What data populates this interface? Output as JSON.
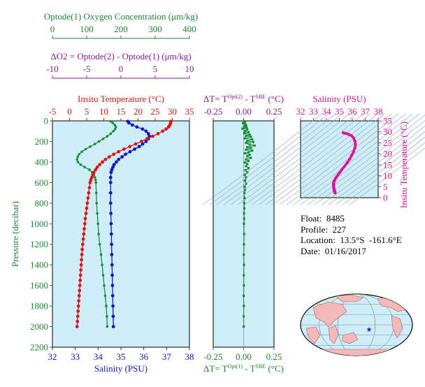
{
  "colors": {
    "oxygen": "#1a8a32",
    "delta_o2": "#8e1a8e",
    "temperature": "#e3140f",
    "salinity": "#1414d2",
    "ts": "#e0109c",
    "panel_bg": "#cdeef8",
    "axis": "#000000"
  },
  "chart_data": [
    {
      "type": "line",
      "title": "",
      "ylabel": "Pressure (decibar)",
      "ylim": [
        0,
        2200
      ],
      "y_inverted": true,
      "yticks": [
        0,
        200,
        400,
        600,
        800,
        1000,
        1200,
        1400,
        1600,
        1800,
        2000,
        2200
      ],
      "axes": {
        "oxygen": {
          "label": "Optode(1) Oxygen Concentration (μm/kg)",
          "range": [
            0,
            400
          ],
          "ticks": [
            0,
            100,
            200,
            300,
            400
          ]
        },
        "delta_o2": {
          "label": "ΔO2 = Optode(2) - Optode(1)   (μm/kg)",
          "range": [
            -10,
            10
          ],
          "ticks": [
            -10,
            -5,
            0,
            5,
            10
          ]
        },
        "temperature": {
          "label": "Insitu Temperature (°C)",
          "range": [
            -5,
            35
          ],
          "ticks": [
            -5,
            0,
            5,
            10,
            15,
            20,
            25,
            30,
            35
          ]
        },
        "salinity": {
          "label": "Salinity (PSU)",
          "range": [
            32,
            38
          ],
          "ticks": [
            32,
            33,
            34,
            35,
            36,
            37,
            38
          ]
        }
      },
      "series": [
        {
          "name": "Insitu Temperature (°C)",
          "axis": "temperature",
          "points": [
            [
              29.6,
              5
            ],
            [
              29.5,
              20
            ],
            [
              29.3,
              40
            ],
            [
              28.9,
              60
            ],
            [
              28.2,
              80
            ],
            [
              27.2,
              100
            ],
            [
              25.8,
              125
            ],
            [
              24.3,
              150
            ],
            [
              22.6,
              175
            ],
            [
              21,
              200
            ],
            [
              19.3,
              225
            ],
            [
              17.6,
              250
            ],
            [
              15.9,
              275
            ],
            [
              14.3,
              300
            ],
            [
              12.9,
              325
            ],
            [
              11.6,
              350
            ],
            [
              10.5,
              375
            ],
            [
              9.6,
              400
            ],
            [
              8.8,
              425
            ],
            [
              8.1,
              450
            ],
            [
              7.6,
              475
            ],
            [
              7.1,
              500
            ],
            [
              6.8,
              525
            ],
            [
              6.5,
              550
            ],
            [
              6.2,
              575
            ],
            [
              6,
              600
            ],
            [
              5.8,
              650
            ],
            [
              5.6,
              700
            ],
            [
              5.4,
              750
            ],
            [
              5.2,
              800
            ],
            [
              5,
              850
            ],
            [
              4.8,
              900
            ],
            [
              4.6,
              950
            ],
            [
              4.45,
              1000
            ],
            [
              4.3,
              1050
            ],
            [
              4.15,
              1100
            ],
            [
              4,
              1150
            ],
            [
              3.85,
              1200
            ],
            [
              3.7,
              1250
            ],
            [
              3.6,
              1300
            ],
            [
              3.5,
              1350
            ],
            [
              3.4,
              1400
            ],
            [
              3.3,
              1450
            ],
            [
              3.2,
              1500
            ],
            [
              3.1,
              1550
            ],
            [
              3,
              1600
            ],
            [
              2.9,
              1650
            ],
            [
              2.8,
              1700
            ],
            [
              2.7,
              1750
            ],
            [
              2.6,
              1800
            ],
            [
              2.5,
              1850
            ],
            [
              2.4,
              1900
            ],
            [
              2.3,
              1950
            ],
            [
              2.2,
              2000
            ]
          ]
        },
        {
          "name": "Salinity (PSU)",
          "axis": "salinity",
          "points": [
            [
              35.3,
              5
            ],
            [
              35.35,
              20
            ],
            [
              35.5,
              40
            ],
            [
              35.7,
              60
            ],
            [
              35.95,
              80
            ],
            [
              36.1,
              100
            ],
            [
              36.2,
              125
            ],
            [
              36.25,
              150
            ],
            [
              36.2,
              175
            ],
            [
              36.1,
              200
            ],
            [
              35.95,
              225
            ],
            [
              35.8,
              250
            ],
            [
              35.6,
              275
            ],
            [
              35.4,
              300
            ],
            [
              35.2,
              325
            ],
            [
              35.05,
              350
            ],
            [
              34.9,
              375
            ],
            [
              34.8,
              400
            ],
            [
              34.7,
              425
            ],
            [
              34.65,
              450
            ],
            [
              34.6,
              475
            ],
            [
              34.57,
              500
            ],
            [
              34.55,
              550
            ],
            [
              34.55,
              600
            ],
            [
              34.55,
              700
            ],
            [
              34.55,
              800
            ],
            [
              34.56,
              900
            ],
            [
              34.57,
              1000
            ],
            [
              34.58,
              1100
            ],
            [
              34.59,
              1200
            ],
            [
              34.6,
              1300
            ],
            [
              34.61,
              1400
            ],
            [
              34.62,
              1500
            ],
            [
              34.63,
              1600
            ],
            [
              34.64,
              1700
            ],
            [
              34.65,
              1800
            ],
            [
              34.66,
              1900
            ],
            [
              34.67,
              2000
            ]
          ]
        },
        {
          "name": "Optode(1) Oxygen Concentration (μm/kg)",
          "axis": "oxygen",
          "points": [
            [
              170,
              5
            ],
            [
              176,
              20
            ],
            [
              182,
              40
            ],
            [
              185,
              60
            ],
            [
              183,
              80
            ],
            [
              178,
              100
            ],
            [
              170,
              125
            ],
            [
              160,
              150
            ],
            [
              148,
              175
            ],
            [
              136,
              200
            ],
            [
              124,
              225
            ],
            [
              110,
              250
            ],
            [
              97,
              275
            ],
            [
              86,
              300
            ],
            [
              78,
              325
            ],
            [
              74,
              350
            ],
            [
              72,
              375
            ],
            [
              74,
              400
            ],
            [
              82,
              425
            ],
            [
              94,
              450
            ],
            [
              108,
              475
            ],
            [
              116,
              500
            ],
            [
              121,
              525
            ],
            [
              124,
              550
            ],
            [
              126,
              575
            ],
            [
              127,
              600
            ],
            [
              128,
              700
            ],
            [
              129,
              800
            ],
            [
              131,
              900
            ],
            [
              133,
              1000
            ],
            [
              135,
              1100
            ],
            [
              138,
              1200
            ],
            [
              142,
              1300
            ],
            [
              145,
              1400
            ],
            [
              148,
              1500
            ],
            [
              151,
              1600
            ],
            [
              154,
              1700
            ],
            [
              157,
              1800
            ],
            [
              159,
              1900
            ],
            [
              160,
              2000
            ]
          ]
        },
        {
          "name": "ΔT = T(Opt(2)) - T(SBE) (°C)",
          "axis": "dt_top",
          "points": [
            [
              0.002,
              5
            ],
            [
              0.01,
              15
            ],
            [
              -0.005,
              25
            ],
            [
              0.015,
              35
            ],
            [
              0.02,
              45
            ],
            [
              0.005,
              55
            ],
            [
              0.025,
              65
            ],
            [
              -0.01,
              75
            ],
            [
              0.03,
              85
            ],
            [
              0.01,
              100
            ],
            [
              0.04,
              110
            ],
            [
              0.005,
              120
            ],
            [
              0.05,
              135
            ],
            [
              0.02,
              145
            ],
            [
              0.06,
              155
            ],
            [
              0.01,
              170
            ],
            [
              0.07,
              180
            ],
            [
              0.03,
              195
            ],
            [
              0.08,
              205
            ],
            [
              0.02,
              215
            ],
            [
              0.05,
              230
            ],
            [
              0.09,
              240
            ],
            [
              0.03,
              255
            ],
            [
              0.06,
              265
            ],
            [
              0.02,
              280
            ],
            [
              0.07,
              290
            ],
            [
              0.04,
              305
            ],
            [
              0.01,
              315
            ],
            [
              0.05,
              330
            ],
            [
              0.03,
              345
            ],
            [
              0.06,
              360
            ],
            [
              0.02,
              375
            ],
            [
              0.04,
              390
            ],
            [
              0.01,
              405
            ],
            [
              0.03,
              420
            ],
            [
              0.02,
              440
            ],
            [
              0.04,
              460
            ],
            [
              0.015,
              480
            ],
            [
              0.03,
              500
            ],
            [
              0.01,
              525
            ],
            [
              0.02,
              550
            ],
            [
              0.012,
              580
            ],
            [
              0.02,
              610
            ],
            [
              0.008,
              640
            ],
            [
              0.012,
              670
            ],
            [
              0.006,
              700
            ],
            [
              0.008,
              750
            ],
            [
              0.005,
              800
            ],
            [
              0.006,
              850
            ],
            [
              0.004,
              900
            ],
            [
              0.005,
              950
            ],
            [
              0.003,
              1000
            ],
            [
              0.004,
              1100
            ],
            [
              0.003,
              1200
            ],
            [
              0.002,
              1300
            ],
            [
              0.003,
              1400
            ],
            [
              0.002,
              1500
            ],
            [
              0.002,
              1600
            ],
            [
              0.001,
              1700
            ],
            [
              0.002,
              1800
            ],
            [
              0.001,
              1900
            ],
            [
              0.001,
              2000
            ]
          ]
        },
        {
          "name": "Salinity vs Insitu Temperature",
          "axis": "ts",
          "points": [
            [
              35.3,
              29.6
            ],
            [
              35.35,
              29.5
            ],
            [
              35.5,
              29.3
            ],
            [
              35.7,
              28.9
            ],
            [
              35.95,
              28.2
            ],
            [
              36.1,
              27.2
            ],
            [
              36.2,
              25.8
            ],
            [
              36.25,
              24.3
            ],
            [
              36.2,
              22.6
            ],
            [
              36.1,
              21
            ],
            [
              35.95,
              19.3
            ],
            [
              35.8,
              17.6
            ],
            [
              35.6,
              15.9
            ],
            [
              35.4,
              14.3
            ],
            [
              35.2,
              12.9
            ],
            [
              35.05,
              11.6
            ],
            [
              34.9,
              10.5
            ],
            [
              34.8,
              9.6
            ],
            [
              34.7,
              8.8
            ],
            [
              34.65,
              8.1
            ],
            [
              34.6,
              7.6
            ],
            [
              34.57,
              7.1
            ],
            [
              34.55,
              6.5
            ],
            [
              34.55,
              6
            ],
            [
              34.55,
              5.6
            ],
            [
              34.55,
              5.2
            ],
            [
              34.56,
              4.8
            ],
            [
              34.57,
              4.45
            ],
            [
              34.58,
              4.15
            ],
            [
              34.59,
              3.85
            ],
            [
              34.6,
              3.6
            ],
            [
              34.61,
              3.4
            ],
            [
              34.62,
              3.2
            ],
            [
              34.63,
              3
            ],
            [
              34.64,
              2.8
            ],
            [
              34.65,
              2.6
            ],
            [
              34.66,
              2.4
            ],
            [
              34.67,
              2.2
            ]
          ]
        }
      ]
    },
    {
      "type": "scatter",
      "title": "",
      "axes": {
        "dt_top": {
          "label_parts": [
            "ΔT= T",
            "Opt(2)",
            " - T",
            "SBE",
            " (°C)"
          ],
          "range": [
            -0.25,
            0.25
          ],
          "ticks": [
            "-0.25",
            "0.00",
            "0.25"
          ]
        },
        "dt_bottom": {
          "label_parts": [
            "ΔT= T",
            "Opt(1)",
            " - T",
            "SBE",
            " (°C)"
          ],
          "range": [
            -0.25,
            0.25
          ],
          "ticks": [
            "-0.25",
            "0.00",
            "0.25"
          ]
        }
      }
    },
    {
      "type": "line",
      "title": "",
      "axes": {
        "ts_x": {
          "label": "Salinity (PSU)",
          "range": [
            32,
            38
          ],
          "ticks": [
            32,
            33,
            34,
            35,
            36,
            37,
            38
          ]
        },
        "ts_y": {
          "label": "Insitu Temperature (°C)",
          "range": [
            0,
            35
          ],
          "ticks": [
            0,
            5,
            10,
            15,
            20,
            25,
            30,
            35
          ]
        }
      }
    }
  ],
  "info": {
    "float": "Float:  8485",
    "profile": "Profile:  227",
    "location": "Location:  13.5°S  -161.6°E",
    "date": "Date:  01/16/2017"
  },
  "map": {
    "marker_lon": -161.6,
    "marker_lat": -13.5
  }
}
